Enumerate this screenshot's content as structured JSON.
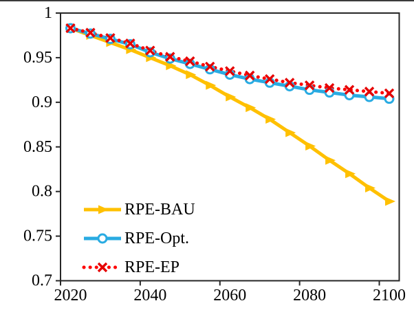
{
  "chart_data": {
    "type": "line",
    "title": "",
    "xlabel": "",
    "ylabel": "",
    "x": [
      2020,
      2025,
      2030,
      2035,
      2040,
      2045,
      2050,
      2055,
      2060,
      2065,
      2070,
      2075,
      2080,
      2085,
      2090,
      2095,
      2100
    ],
    "series": [
      {
        "name": "RPE-BAU",
        "color": "#FFC000",
        "marker": "triangle-right",
        "marker_color": "#FFC000",
        "line_style": "solid",
        "values": [
          0.983,
          0.975,
          0.967,
          0.959,
          0.95,
          0.941,
          0.931,
          0.919,
          0.906,
          0.894,
          0.881,
          0.866,
          0.851,
          0.835,
          0.82,
          0.804,
          0.789
        ]
      },
      {
        "name": "RPE-Opt.",
        "color": "#29ABE2",
        "marker": "circle-open",
        "marker_color": "#29ABE2",
        "line_style": "solid",
        "values": [
          0.983,
          0.977,
          0.971,
          0.965,
          0.956,
          0.949,
          0.943,
          0.937,
          0.931,
          0.926,
          0.922,
          0.918,
          0.914,
          0.911,
          0.908,
          0.906,
          0.904
        ]
      },
      {
        "name": "RPE-EP",
        "color": "#FF0000",
        "marker": "x",
        "marker_color": "#E50000",
        "line_style": "dotted",
        "values": [
          0.983,
          0.978,
          0.972,
          0.966,
          0.958,
          0.951,
          0.946,
          0.94,
          0.935,
          0.93,
          0.926,
          0.922,
          0.919,
          0.916,
          0.914,
          0.912,
          0.91
        ]
      }
    ],
    "ylim": [
      0.7,
      1.0
    ],
    "y_ticks": [
      1,
      0.95,
      0.9,
      0.85,
      0.8,
      0.75,
      0.7
    ],
    "y_tick_labels": [
      "1",
      "0.95",
      "0.9",
      "0.85",
      "0.8",
      "0.75",
      "0.7"
    ],
    "x_tick_years": [
      2020,
      2040,
      2060,
      2080,
      2100
    ],
    "x_tick_labels": [
      "2020",
      "2040",
      "2060",
      "2080",
      "2100"
    ],
    "grid": false,
    "legend_position": "inside-bottom-left",
    "axis_color": "#262626"
  }
}
